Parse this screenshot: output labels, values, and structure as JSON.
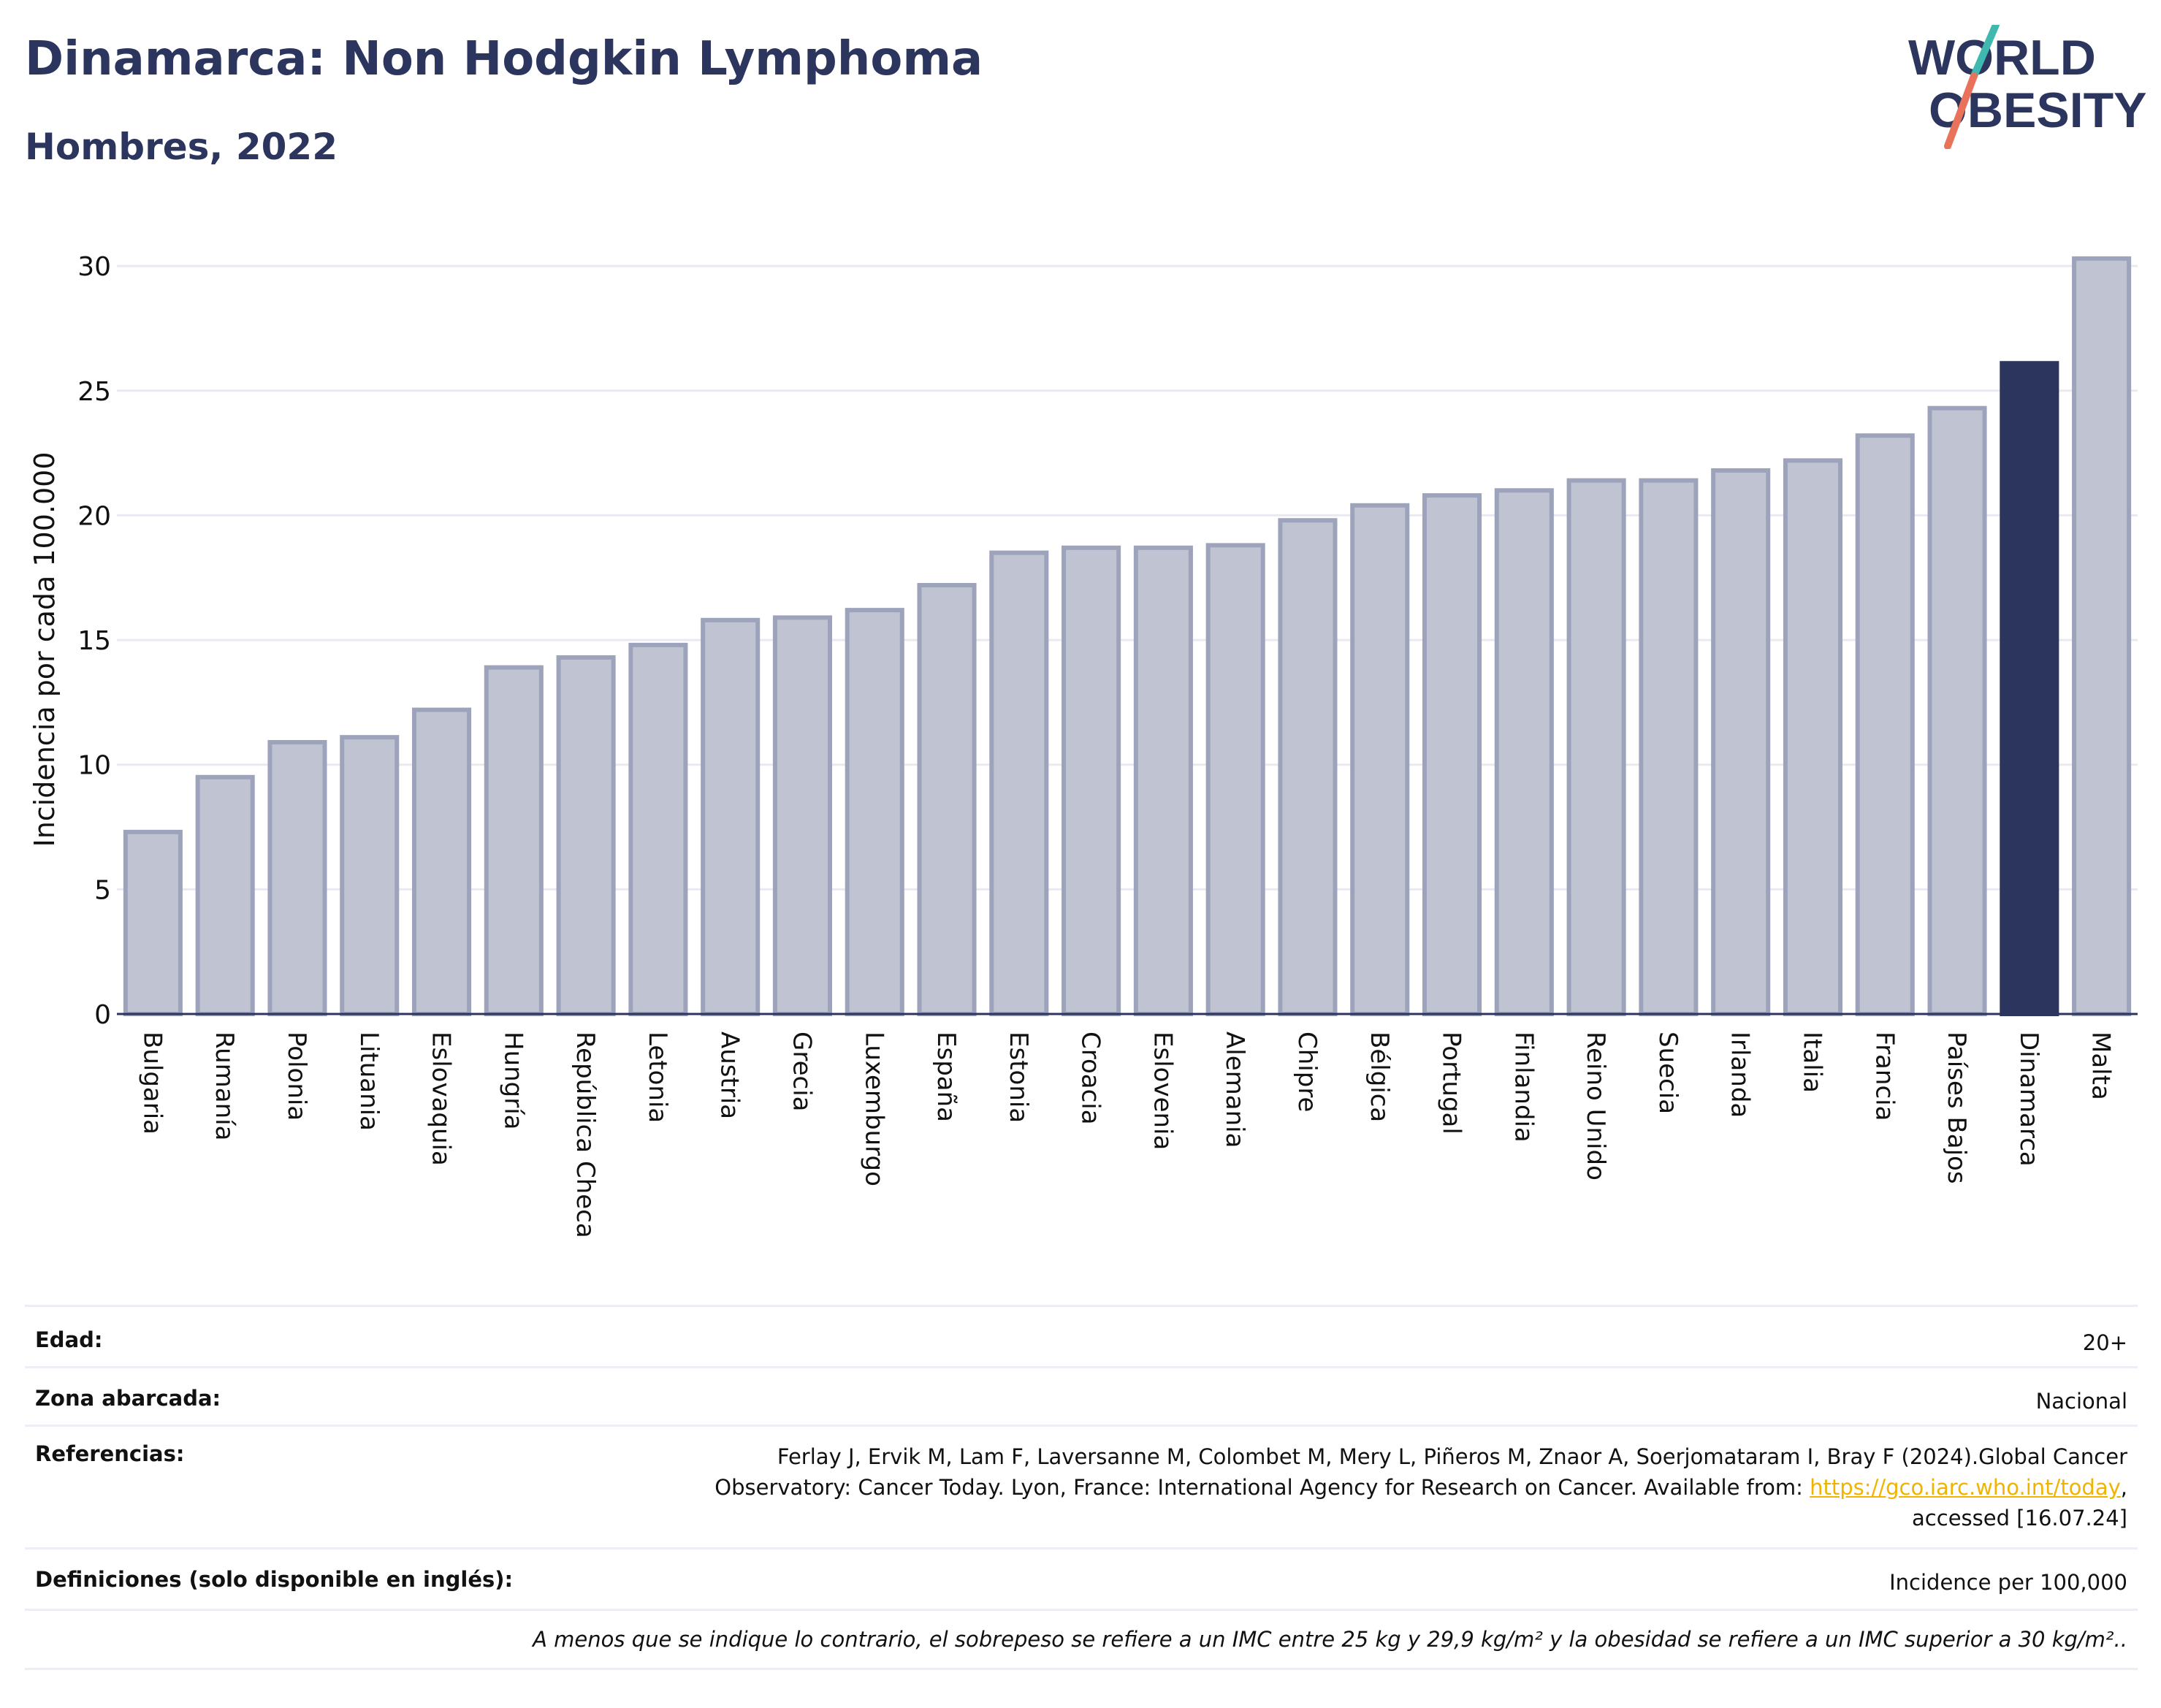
{
  "header": {
    "title": "Dinamarca: Non Hodgkin Lymphoma",
    "subtitle": "Hombres, 2022"
  },
  "logo": {
    "line1": "WORLD",
    "line2": "OBESITY",
    "colors": {
      "text": "#2b355e",
      "slash_top": "#3fb8b0",
      "slash_bottom": "#e8735a"
    }
  },
  "colors": {
    "bar": "#c0c3d1",
    "bar_outline": "#9ea3bc",
    "highlight": "#2b355e",
    "grid": "#e9eaf1",
    "axis": "#2b355e"
  },
  "chart_data": {
    "type": "bar",
    "title": "Dinamarca: Non Hodgkin Lymphoma",
    "subtitle": "Hombres, 2022",
    "ylabel": "Incidencia por cada 100.000",
    "xlabel": "",
    "ylim": [
      0,
      31
    ],
    "yticks": [
      0,
      5,
      10,
      15,
      20,
      25,
      30
    ],
    "grid": true,
    "highlight": "Dinamarca",
    "categories": [
      "Bulgaria",
      "Rumanía",
      "Polonia",
      "Lituania",
      "Eslovaquia",
      "Hungría",
      "República Checa",
      "Letonia",
      "Austria",
      "Grecia",
      "Luxemburgo",
      "España",
      "Estonia",
      "Croacia",
      "Eslovenia",
      "Alemania",
      "Chipre",
      "Bélgica",
      "Portugal",
      "Finlandia",
      "Reino Unido",
      "Suecia",
      "Irlanda",
      "Italia",
      "Francia",
      "Países Bajos",
      "Dinamarca",
      "Malta"
    ],
    "values": [
      7.3,
      9.5,
      10.9,
      11.1,
      12.2,
      13.9,
      14.3,
      14.8,
      15.8,
      15.9,
      16.2,
      17.2,
      18.5,
      18.7,
      18.7,
      18.8,
      19.8,
      20.4,
      20.8,
      21.0,
      21.4,
      21.4,
      21.8,
      22.2,
      23.2,
      24.3,
      26.1,
      30.3
    ]
  },
  "meta": {
    "age_label": "Edad:",
    "age_value": "20+",
    "zone_label": "Zona abarcada:",
    "zone_value": "Nacional",
    "refs_label": "Referencias:",
    "refs_line1": "Ferlay J, Ervik M, Lam F, Laversanne M, Colombet M, Mery L, Piñeros M, Znaor A, Soerjomataram I, Bray F (2024).Global Cancer",
    "refs_line2_pre": "Observatory: Cancer Today. Lyon, France: International Agency for Research on Cancer. Available from: ",
    "refs_link": "https://gco.iarc.who.int/today",
    "refs_line2_post": ",",
    "refs_line3": "accessed [16.07.24]",
    "defs_label": "Definiciones (solo disponible en inglés):",
    "defs_value": "Incidence per 100,000",
    "note": "A menos que se indique lo contrario, el sobrepeso se refiere a un IMC entre 25 kg y 29,9 kg/m² y la obesidad se refiere a un IMC superior a 30 kg/m².."
  }
}
